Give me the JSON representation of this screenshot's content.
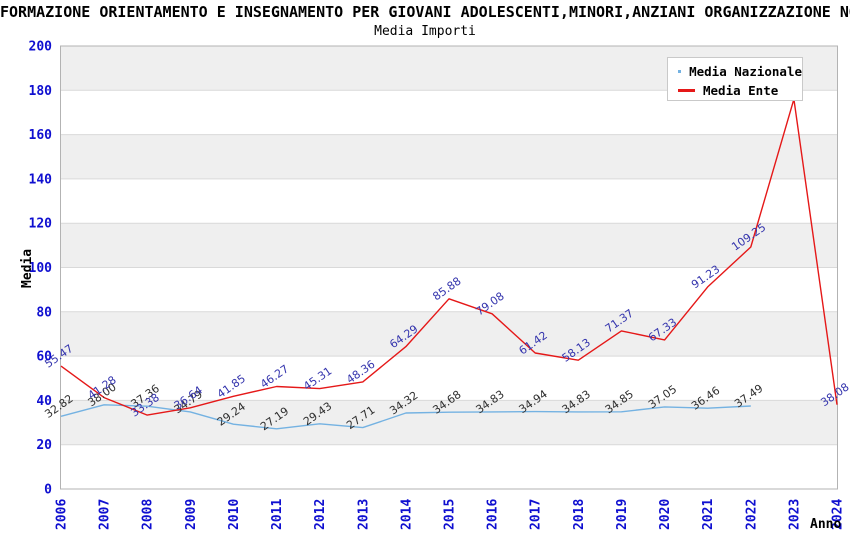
{
  "header": {
    "title": "FORMAZIONE ORIENTAMENTO E INSEGNAMENTO PER GIOVANI ADOLESCENTI,MINORI,ANZIANI ORGANIZZAZIONE NON",
    "subtitle": "Media Importi"
  },
  "legend": {
    "position": "top-right",
    "entries": [
      {
        "label": "Media Nazionale",
        "color": "#74b2e2"
      },
      {
        "label": "Media Ente",
        "color": "#e51818"
      }
    ]
  },
  "chart_data": {
    "type": "line",
    "title": "FORMAZIONE ORIENTAMENTO E INSEGNAMENTO PER GIOVANI ADOLESCENTI,MINORI,ANZIANI ORGANIZZAZIONE NON",
    "subtitle": "Media Importi",
    "xlabel": "Anno",
    "ylabel": "Media",
    "ylim": [
      0,
      200
    ],
    "ytick_step": 20,
    "yticks": [
      0,
      20,
      40,
      60,
      80,
      100,
      120,
      140,
      160,
      180,
      200
    ],
    "grid": "horizontal-bands",
    "legend_position": "top-right-inside",
    "x": [
      2006,
      2007,
      2008,
      2009,
      2010,
      2011,
      2012,
      2013,
      2014,
      2015,
      2016,
      2017,
      2018,
      2019,
      2020,
      2021,
      2022,
      2023,
      2024
    ],
    "series": [
      {
        "name": "Media Nazionale",
        "color": "#74b2e2",
        "label_color": "#2e2e2e",
        "values": [
          32.82,
          38.0,
          37.36,
          34.79,
          29.24,
          27.19,
          29.43,
          27.71,
          34.32,
          34.68,
          34.83,
          34.94,
          34.83,
          34.85,
          37.05,
          36.46,
          37.49,
          null,
          null
        ],
        "labels": [
          "32.82",
          "38.00",
          "37.36",
          "34.79",
          "29.24",
          "27.19",
          "29.43",
          "27.71",
          "34.32",
          "34.68",
          "34.83",
          "34.94",
          "34.83",
          "34.85",
          "37.05",
          "36.46",
          "37.49",
          null,
          null
        ]
      },
      {
        "name": "Media Ente",
        "color": "#e51818",
        "label_color": "#3434ad",
        "values": [
          55.47,
          41.28,
          33.38,
          36.64,
          41.85,
          46.27,
          45.31,
          48.36,
          64.29,
          85.88,
          79.08,
          61.42,
          58.13,
          71.37,
          67.33,
          91.23,
          109.25,
          176,
          38.08
        ],
        "labels": [
          "55.47",
          "41.28",
          "33.38",
          "36.64",
          "41.85",
          "46.27",
          "45.31",
          "48.36",
          "64.29",
          "85.88",
          "79.08",
          "61.42",
          "58.13",
          "71.37",
          "67.33",
          "91.23",
          "109.25",
          null,
          "38.08"
        ],
        "note": "2023 data label hidden behind legend box"
      }
    ],
    "colors": {
      "axis_tick": "#0f0fd0",
      "grid_line": "#d9d9d9",
      "band_fill": "#efefef",
      "plot_border": "#b3b3b3",
      "axis_title": "#000000"
    }
  }
}
